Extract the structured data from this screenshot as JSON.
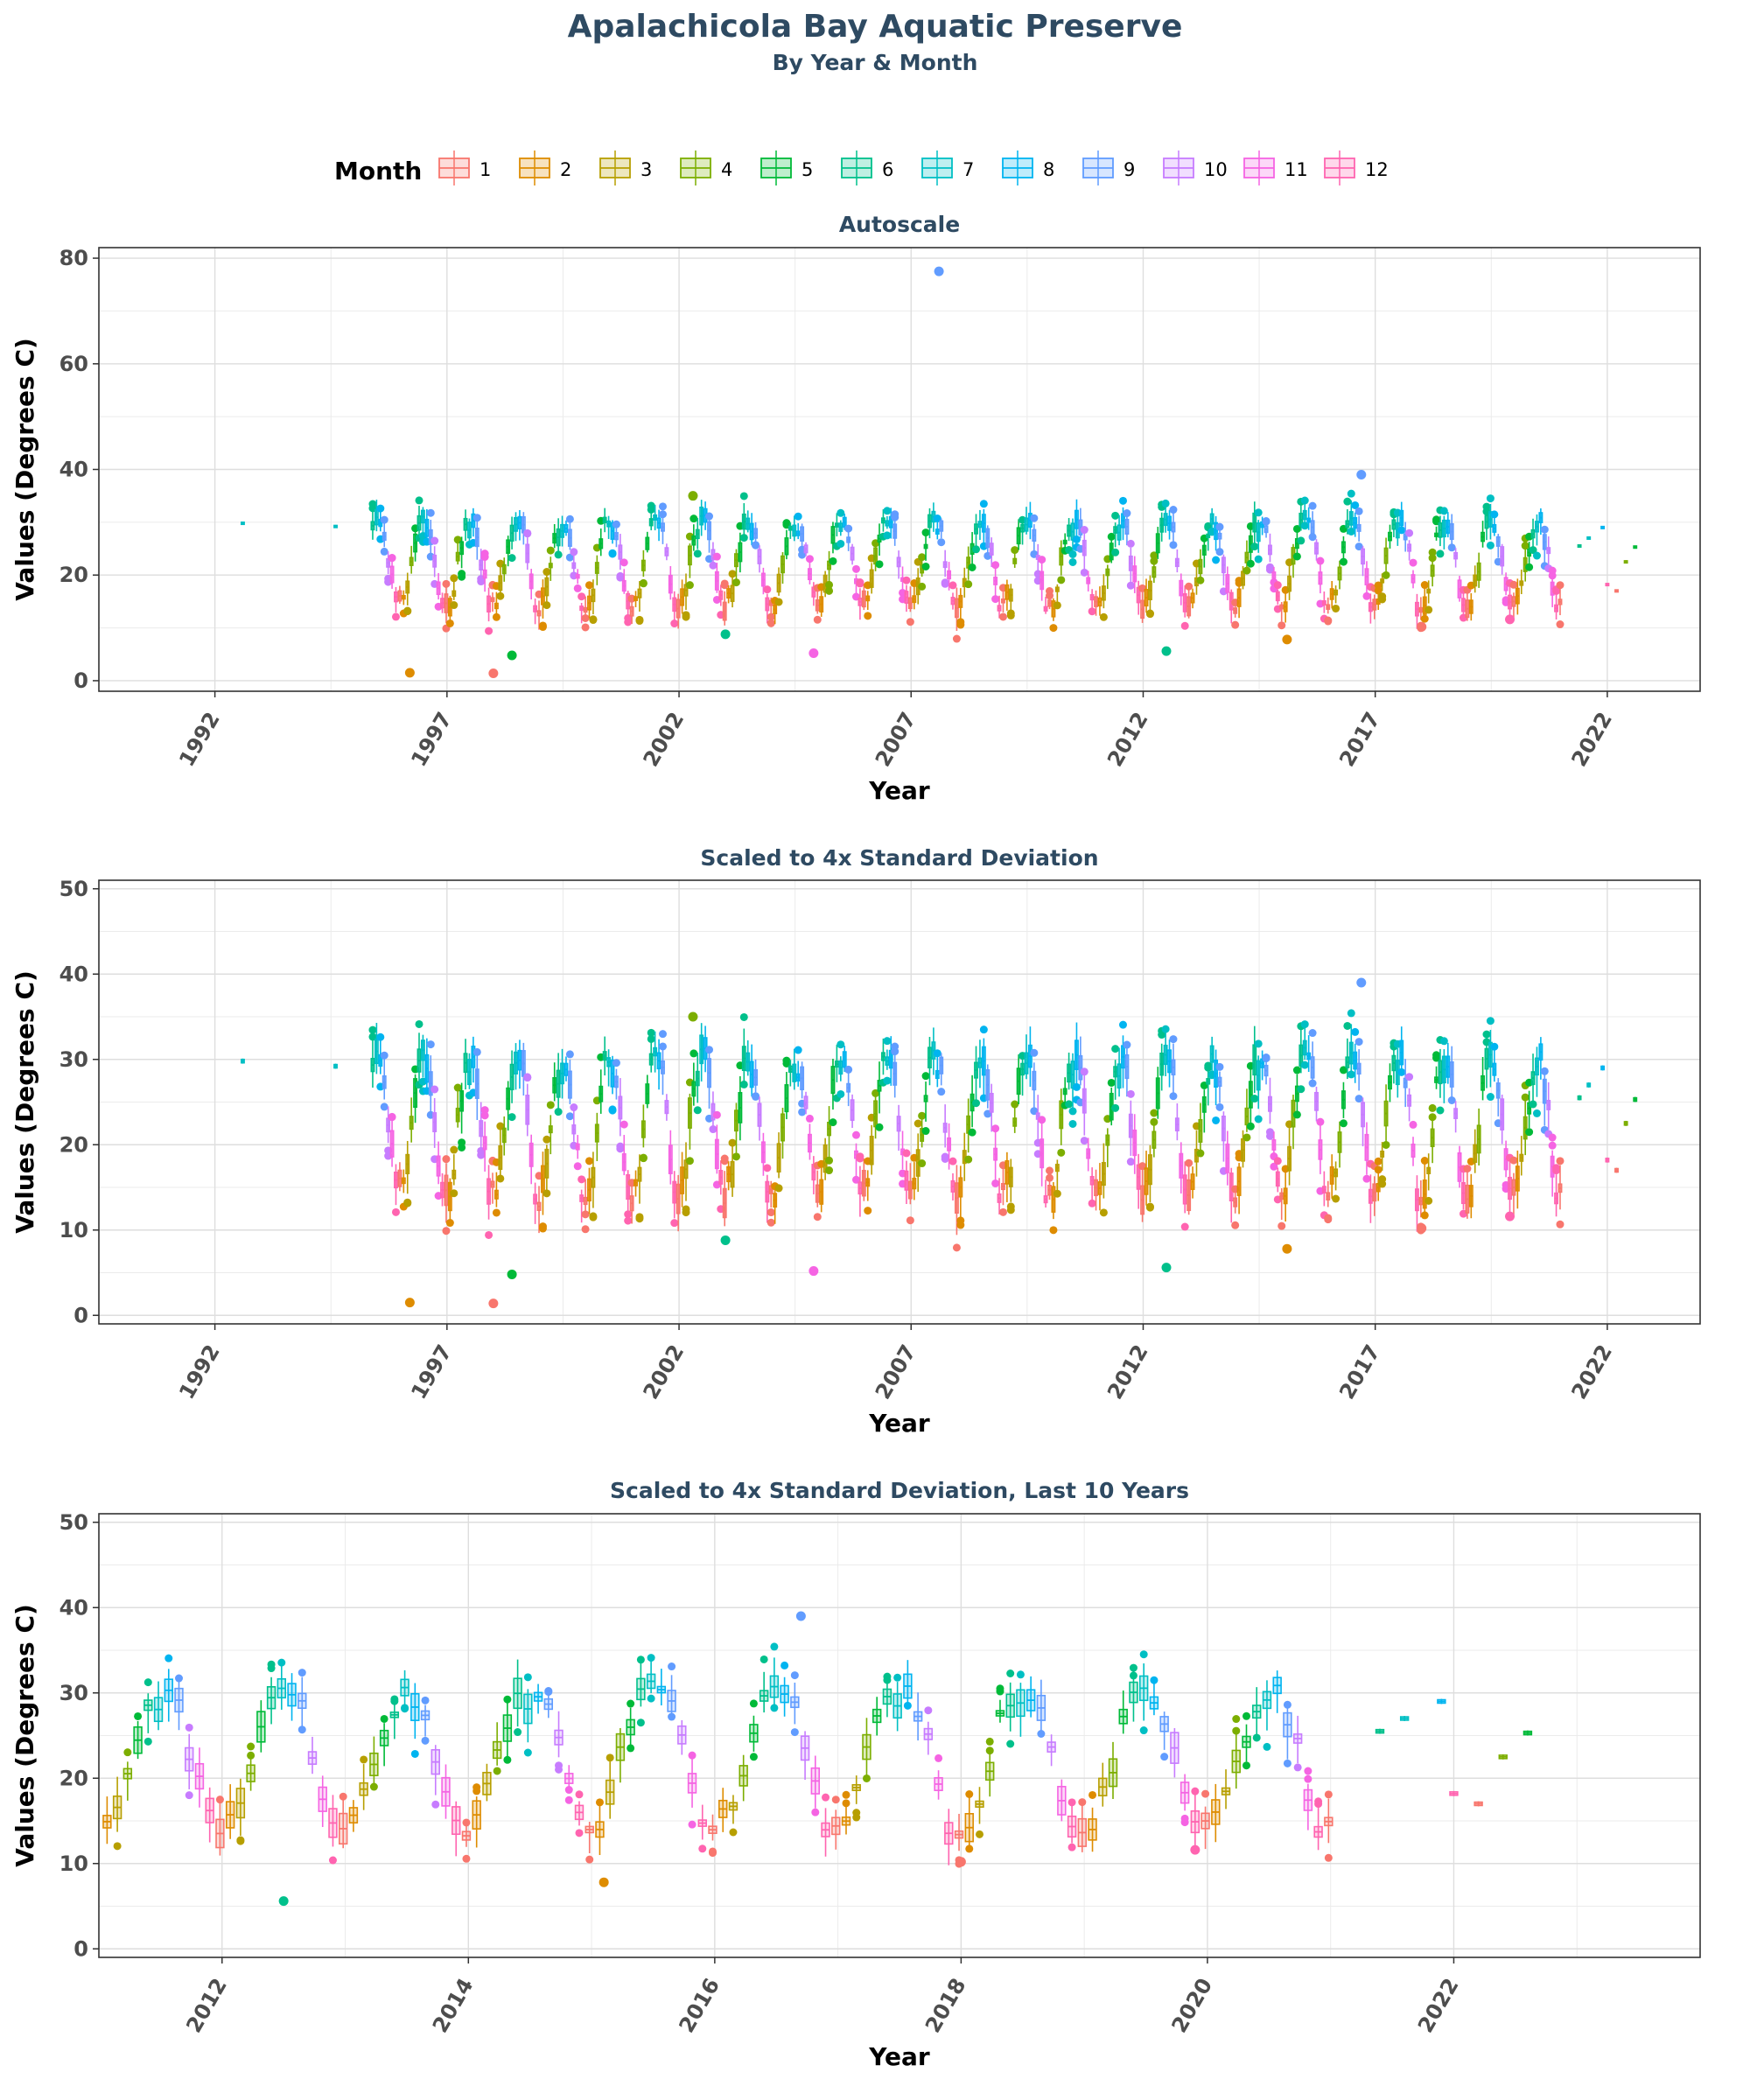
{
  "title": "Apalachicola Bay Aquatic Preserve",
  "subtitle": "By Year & Month",
  "legend": {
    "title": "Month",
    "placement": "top",
    "entries": [
      {
        "label": "1",
        "color": "#F8766D"
      },
      {
        "label": "2",
        "color": "#DE8C00"
      },
      {
        "label": "3",
        "color": "#B79F00"
      },
      {
        "label": "4",
        "color": "#7CAE00"
      },
      {
        "label": "5",
        "color": "#00BA38"
      },
      {
        "label": "6",
        "color": "#00C08B"
      },
      {
        "label": "7",
        "color": "#00BFC4"
      },
      {
        "label": "8",
        "color": "#00B4F0"
      },
      {
        "label": "9",
        "color": "#619CFF"
      },
      {
        "label": "10",
        "color": "#C77CFF"
      },
      {
        "label": "11",
        "color": "#F564E3"
      },
      {
        "label": "12",
        "color": "#FF64B0"
      }
    ]
  },
  "chart_data": [
    {
      "type": "box",
      "title": "Autoscale",
      "xlabel": "Year",
      "ylabel": "Values (Degrees C)",
      "xlim": [
        1989.5,
        2024.0
      ],
      "ylim": [
        -2,
        82
      ],
      "xticks": [
        1992,
        1997,
        2002,
        2007,
        2012,
        2017,
        2022
      ],
      "yticks": [
        0,
        20,
        40,
        60,
        80
      ],
      "grid": true,
      "extra_outliers": [
        {
          "year": 2007.6,
          "month": 9,
          "value": 77.5
        }
      ]
    },
    {
      "type": "box",
      "title": "Scaled to 4x Standard Deviation",
      "xlabel": "Year",
      "ylabel": "Values (Degrees C)",
      "xlim": [
        1989.5,
        2024.0
      ],
      "ylim": [
        -1,
        51
      ],
      "xticks": [
        1992,
        1997,
        2002,
        2007,
        2012,
        2017,
        2022
      ],
      "yticks": [
        0,
        10,
        20,
        30,
        40,
        50
      ],
      "grid": true,
      "extra_outliers": []
    },
    {
      "type": "box",
      "title": "Scaled to 4x Standard Deviation, Last 10 Years",
      "xlabel": "Year",
      "ylabel": "Values (Degrees C)",
      "xlim": [
        2011.0,
        2024.0
      ],
      "ylim": [
        -1,
        51
      ],
      "xticks": [
        2012,
        2014,
        2016,
        2018,
        2020,
        2022
      ],
      "yticks": [
        0,
        10,
        20,
        30,
        40,
        50
      ],
      "grid": true,
      "extra_outliers": []
    }
  ],
  "series": {
    "coverage": [
      {
        "from": 1995.4,
        "to": 2021.0,
        "step": 0.0833
      }
    ],
    "sparse_points": [
      {
        "year": 1992.6,
        "month": 7,
        "median": 29.8
      },
      {
        "year": 1994.6,
        "month": 7,
        "median": 29.2
      },
      {
        "year": 2021.4,
        "month": 6,
        "median": 25.5
      },
      {
        "year": 2021.6,
        "month": 7,
        "median": 27.0
      },
      {
        "year": 2021.9,
        "month": 8,
        "median": 29.0
      },
      {
        "year": 2022.0,
        "month": 12,
        "median": 18.2
      },
      {
        "year": 2022.2,
        "month": 1,
        "median": 17.0
      },
      {
        "year": 2022.4,
        "month": 4,
        "median": 22.5
      },
      {
        "year": 2022.6,
        "month": 5,
        "median": 25.3
      }
    ],
    "monthly_typical": [
      14.5,
      15.2,
      17.8,
      22.0,
      26.0,
      28.8,
      29.8,
      29.6,
      27.8,
      23.5,
      18.8,
      15.2
    ],
    "notable_outliers": [
      {
        "year": 1996.2,
        "month": 2,
        "value": 1.5
      },
      {
        "year": 1998.0,
        "month": 1,
        "value": 1.4
      },
      {
        "year": 1998.4,
        "month": 5,
        "value": 4.8
      },
      {
        "year": 2003.0,
        "month": 6,
        "value": 8.8
      },
      {
        "year": 2002.3,
        "month": 4,
        "value": 35.0
      },
      {
        "year": 2004.9,
        "month": 11,
        "value": 5.2
      },
      {
        "year": 2012.5,
        "month": 6,
        "value": 5.6
      },
      {
        "year": 2015.1,
        "month": 2,
        "value": 7.8
      },
      {
        "year": 2016.7,
        "month": 9,
        "value": 39.0
      },
      {
        "year": 2018.0,
        "month": 1,
        "value": 10.2
      },
      {
        "year": 2019.9,
        "month": 12,
        "value": 11.6
      }
    ]
  }
}
